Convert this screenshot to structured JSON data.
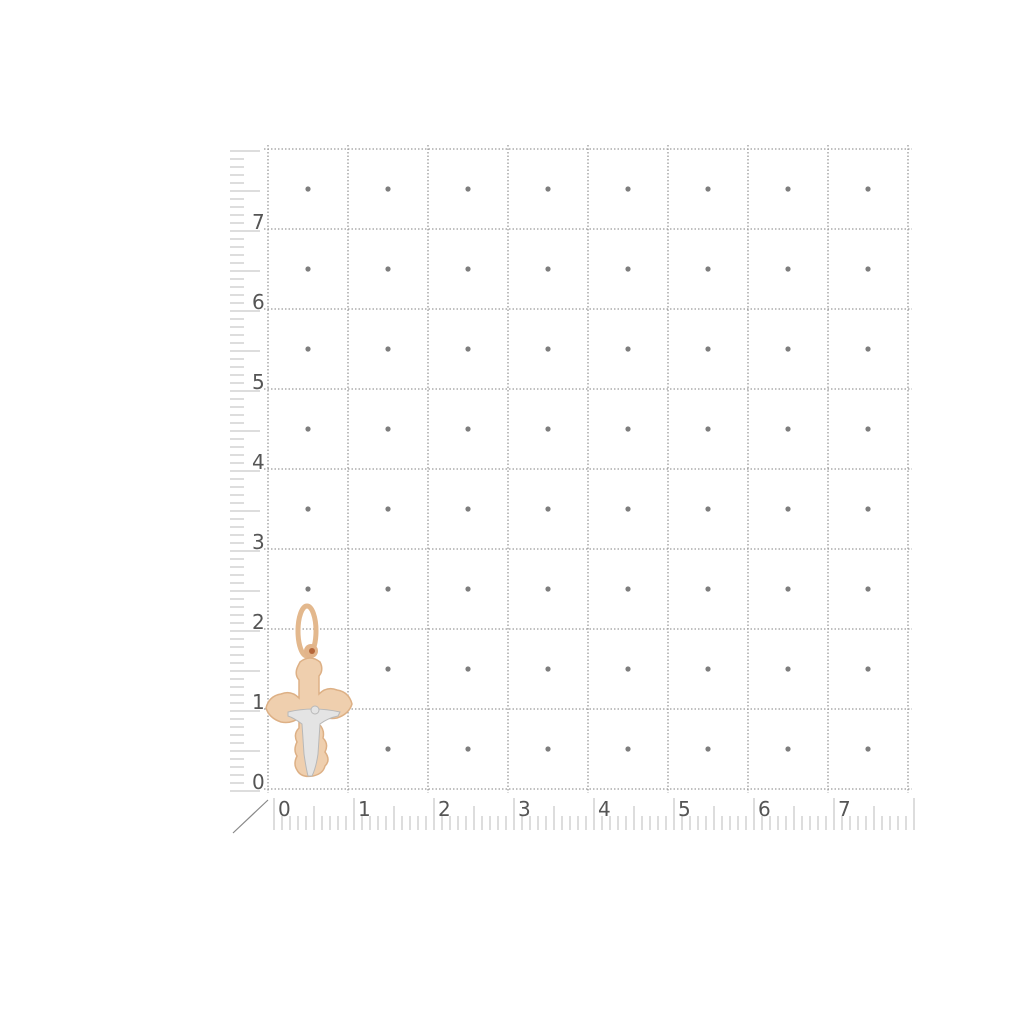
{
  "photo": {
    "subject": "gold cross pendant on measuring grid",
    "colors": {
      "background": "#ffffff",
      "grid": "#9a9a9a",
      "dot": "#7d7d7d",
      "gold": "#e9c29a",
      "gold_edge": "#d9a679",
      "silver": "#dcdcdc",
      "label": "#555555"
    }
  },
  "grid": {
    "columns": 8,
    "rows": 8,
    "y_axis_labels": [
      "0",
      "1",
      "2",
      "3",
      "4",
      "5",
      "6",
      "7"
    ],
    "x_axis_labels": [
      "0",
      "1",
      "2",
      "3",
      "4",
      "5",
      "6",
      "7"
    ]
  }
}
